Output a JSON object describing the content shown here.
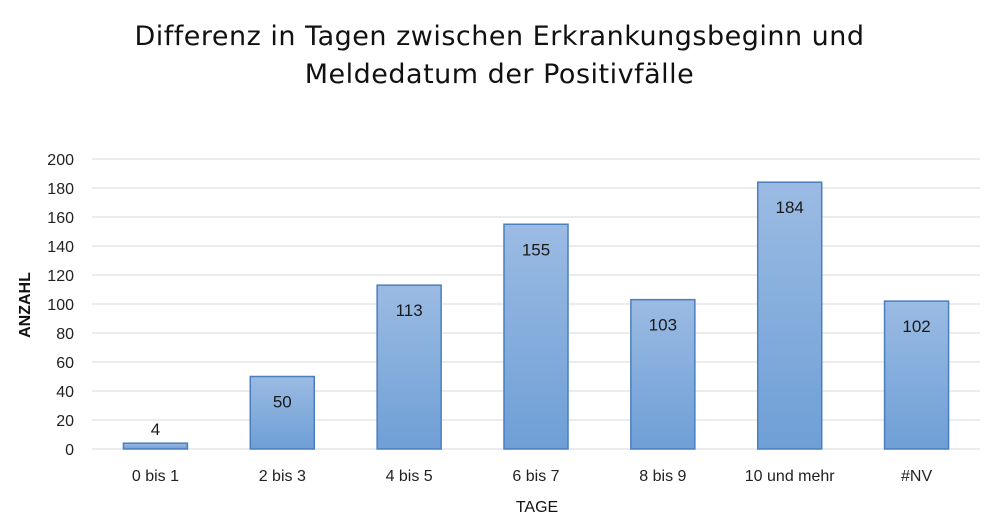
{
  "chart_data": {
    "type": "bar",
    "title_lines": [
      "Differenz in Tagen zwischen Erkrankungsbeginn und",
      "Meldedatum der Positivfälle"
    ],
    "xlabel": "TAGE",
    "ylabel": "ANZAHL",
    "categories": [
      "0 bis 1",
      "2 bis 3",
      "4 bis 5",
      "6 bis 7",
      "8 bis 9",
      "10 und mehr",
      "#NV"
    ],
    "values": [
      4,
      50,
      113,
      155,
      103,
      184,
      102
    ],
    "data_labels": [
      "4",
      "50",
      "113",
      "155",
      "103",
      "184",
      "102"
    ],
    "yticks": [
      0,
      20,
      40,
      60,
      80,
      100,
      120,
      140,
      160,
      180,
      200
    ],
    "ylim": [
      0,
      200
    ],
    "grid": true,
    "legend": "none",
    "colors": {
      "bar_top": "#9bbbe3",
      "bar_bottom": "#6e9fd6",
      "bar_stroke": "#4a7ebf",
      "grid": "#d9d9d9"
    }
  }
}
